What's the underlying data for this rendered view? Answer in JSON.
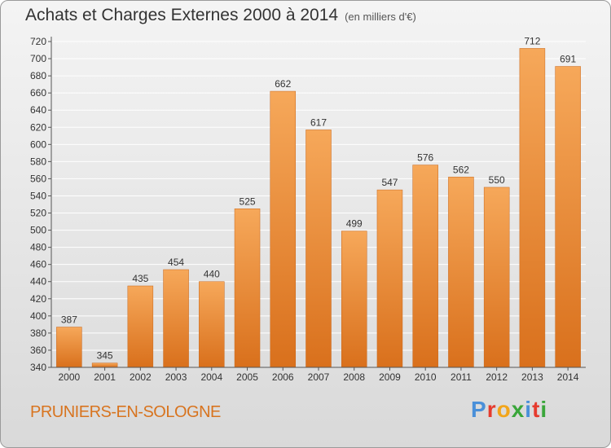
{
  "title": "Achats et Charges Externes 2000 à 2014",
  "units": "(en milliers d'€)",
  "commune": "PRUNIERS-EN-SOLOGNE",
  "brand": {
    "letters": [
      "P",
      "r",
      "o",
      "x",
      "i",
      "t",
      "i"
    ],
    "colors": [
      "#4a90d9",
      "#e63b2e",
      "#f2a51a",
      "#3aa63a",
      "#4a90d9",
      "#e63b2e",
      "#3aa63a"
    ]
  },
  "colors": {
    "bar_top": "#f6a85a",
    "bar_bottom": "#d9701c",
    "axis": "#555555",
    "grid": "#ffffff",
    "text": "#333333",
    "accent": "#d8741f"
  },
  "chart_data": {
    "type": "bar",
    "title": "Achats et Charges Externes 2000 à 2014",
    "xlabel": "",
    "ylabel": "",
    "categories": [
      "2000",
      "2001",
      "2002",
      "2003",
      "2004",
      "2005",
      "2006",
      "2007",
      "2008",
      "2009",
      "2010",
      "2011",
      "2012",
      "2013",
      "2014"
    ],
    "values": [
      387,
      345,
      435,
      454,
      440,
      525,
      662,
      617,
      499,
      547,
      576,
      562,
      550,
      712,
      691
    ],
    "ylim": [
      340,
      720
    ],
    "yticks": [
      340,
      360,
      380,
      400,
      420,
      440,
      460,
      480,
      500,
      520,
      540,
      560,
      580,
      600,
      620,
      640,
      660,
      680,
      700,
      720
    ],
    "grid": true,
    "data_labels": true
  }
}
